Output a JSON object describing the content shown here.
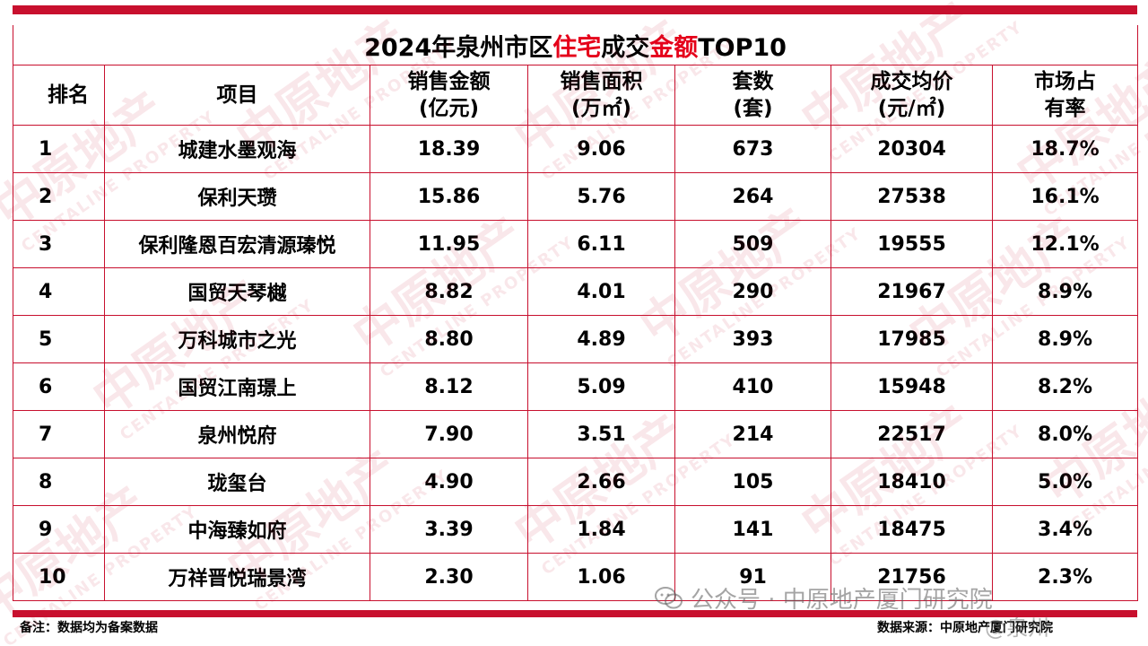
{
  "title": {
    "part1": "2024年泉州市区",
    "highlight1": "住宅",
    "part2": "成交",
    "highlight2": "金额",
    "part3": "TOP10"
  },
  "headers": {
    "rank": "排名",
    "project": "项目",
    "amount": {
      "l1": "销售金额",
      "l2": "(亿元)"
    },
    "area": {
      "l1": "销售面积",
      "l2": "(万㎡)"
    },
    "units": {
      "l1": "套数",
      "l2": "(套)"
    },
    "price": {
      "l1": "成交均价",
      "l2": "(元/㎡)"
    },
    "share": {
      "l1": "市场占",
      "l2": "有率"
    }
  },
  "rows": [
    {
      "rank": "1",
      "project": "城建水墨观海",
      "amount": "18.39",
      "area": "9.06",
      "units": "673",
      "price": "20304",
      "share": "18.7%"
    },
    {
      "rank": "2",
      "project": "保利天瓒",
      "amount": "15.86",
      "area": "5.76",
      "units": "264",
      "price": "27538",
      "share": "16.1%"
    },
    {
      "rank": "3",
      "project": "保利隆恩百宏清源瑧悦",
      "amount": "11.95",
      "area": "6.11",
      "units": "509",
      "price": "19555",
      "share": "12.1%"
    },
    {
      "rank": "4",
      "project": "国贸天琴樾",
      "amount": "8.82",
      "area": "4.01",
      "units": "290",
      "price": "21967",
      "share": "8.9%"
    },
    {
      "rank": "5",
      "project": "万科城市之光",
      "amount": "8.80",
      "area": "4.89",
      "units": "393",
      "price": "17985",
      "share": "8.9%"
    },
    {
      "rank": "6",
      "project": "国贸江南璟上",
      "amount": "8.12",
      "area": "5.09",
      "units": "410",
      "price": "15948",
      "share": "8.2%"
    },
    {
      "rank": "7",
      "project": "泉州悦府",
      "amount": "7.90",
      "area": "3.51",
      "units": "214",
      "price": "22517",
      "share": "8.0%"
    },
    {
      "rank": "8",
      "project": "珑玺台",
      "amount": "4.90",
      "area": "2.66",
      "units": "105",
      "price": "18410",
      "share": "5.0%"
    },
    {
      "rank": "9",
      "project": "中海臻如府",
      "amount": "3.39",
      "area": "1.84",
      "units": "141",
      "price": "18475",
      "share": "3.4%"
    },
    {
      "rank": "10",
      "project": "万祥晋悦瑞景湾",
      "amount": "2.30",
      "area": "1.06",
      "units": "91",
      "price": "21756",
      "share": "2.3%"
    }
  ],
  "footer": {
    "note": "备注：数据均为备案数据",
    "source": "数据来源：中原地产厦门研究院"
  },
  "watermarks": {
    "wechat": "公众号 · 中原地产厦门研究院",
    "weibo": "@泉州",
    "brand": "中原地产",
    "brand_en": "CENTALINE PROPERTY"
  },
  "colors": {
    "accent": "#c8102e",
    "highlight": "#e5001a"
  }
}
